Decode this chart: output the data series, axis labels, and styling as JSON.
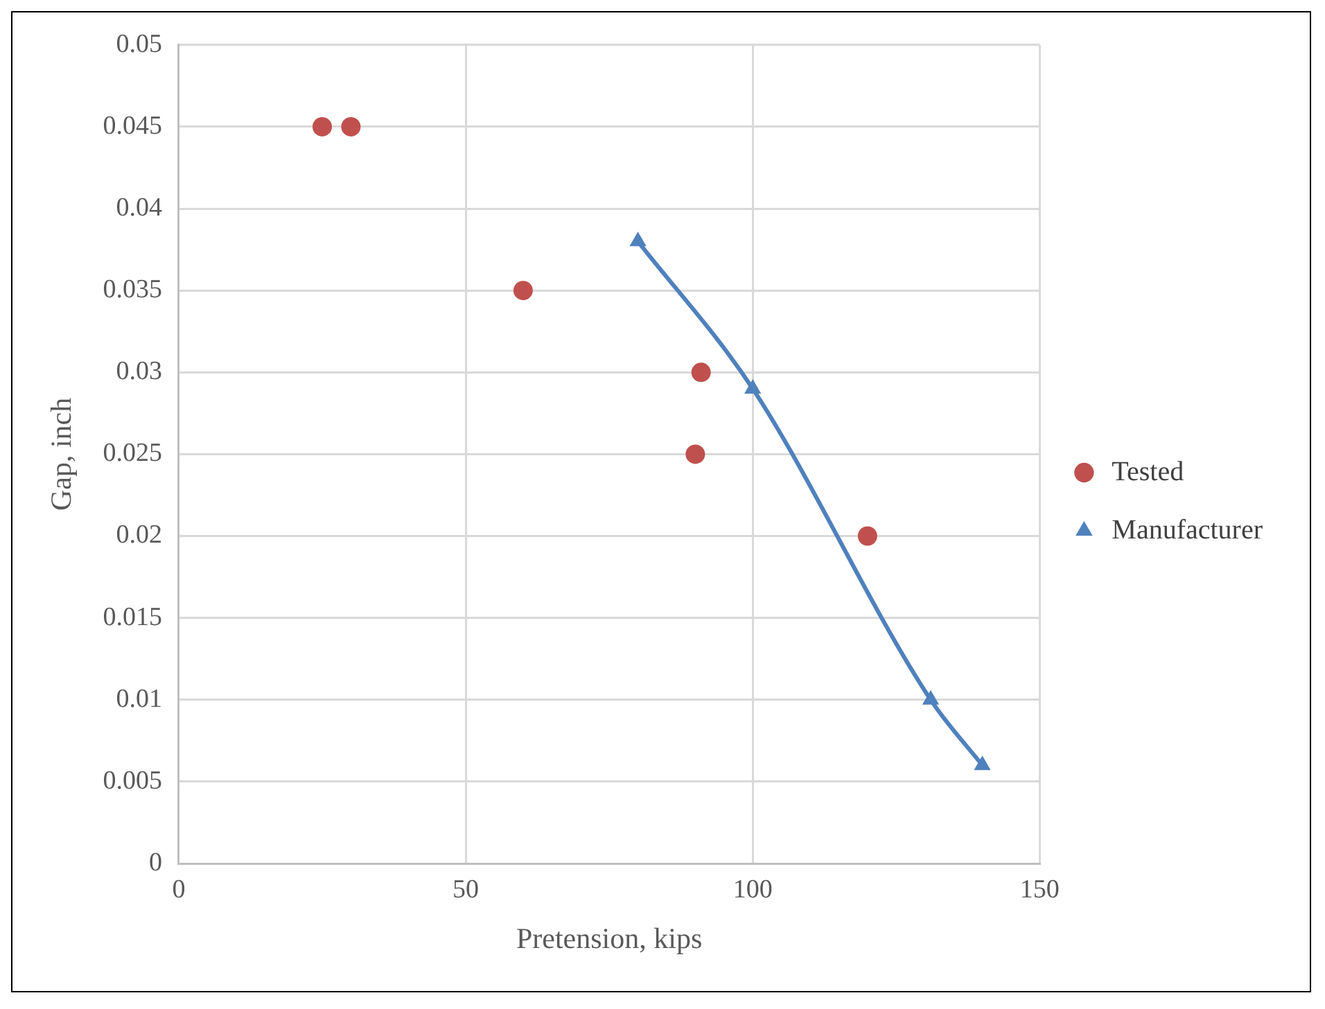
{
  "chart_data": {
    "type": "scatter",
    "xlabel": "Pretension, kips",
    "ylabel": "Gap, inch",
    "xlim": [
      0,
      150
    ],
    "xticks": [
      0,
      50,
      100,
      150
    ],
    "ylim": [
      0,
      0.05
    ],
    "yticks": [
      0,
      0.005,
      0.01,
      0.015,
      0.02,
      0.025,
      0.03,
      0.035,
      0.04,
      0.045,
      0.05
    ],
    "grid": true,
    "legend": "right",
    "series": [
      {
        "name": "Tested",
        "marker": "circle",
        "color": "#c0504d",
        "x": [
          25,
          30,
          60,
          91,
          90,
          120
        ],
        "values": [
          0.045,
          0.045,
          0.035,
          0.03,
          0.025,
          0.02
        ]
      },
      {
        "name": "Manufacturer",
        "type": "line",
        "marker": "triangle",
        "line_style": "solid",
        "color": "#4f81bd",
        "x": [
          80,
          100,
          131,
          140
        ],
        "values": [
          0.038,
          0.029,
          0.01,
          0.006
        ]
      }
    ]
  }
}
